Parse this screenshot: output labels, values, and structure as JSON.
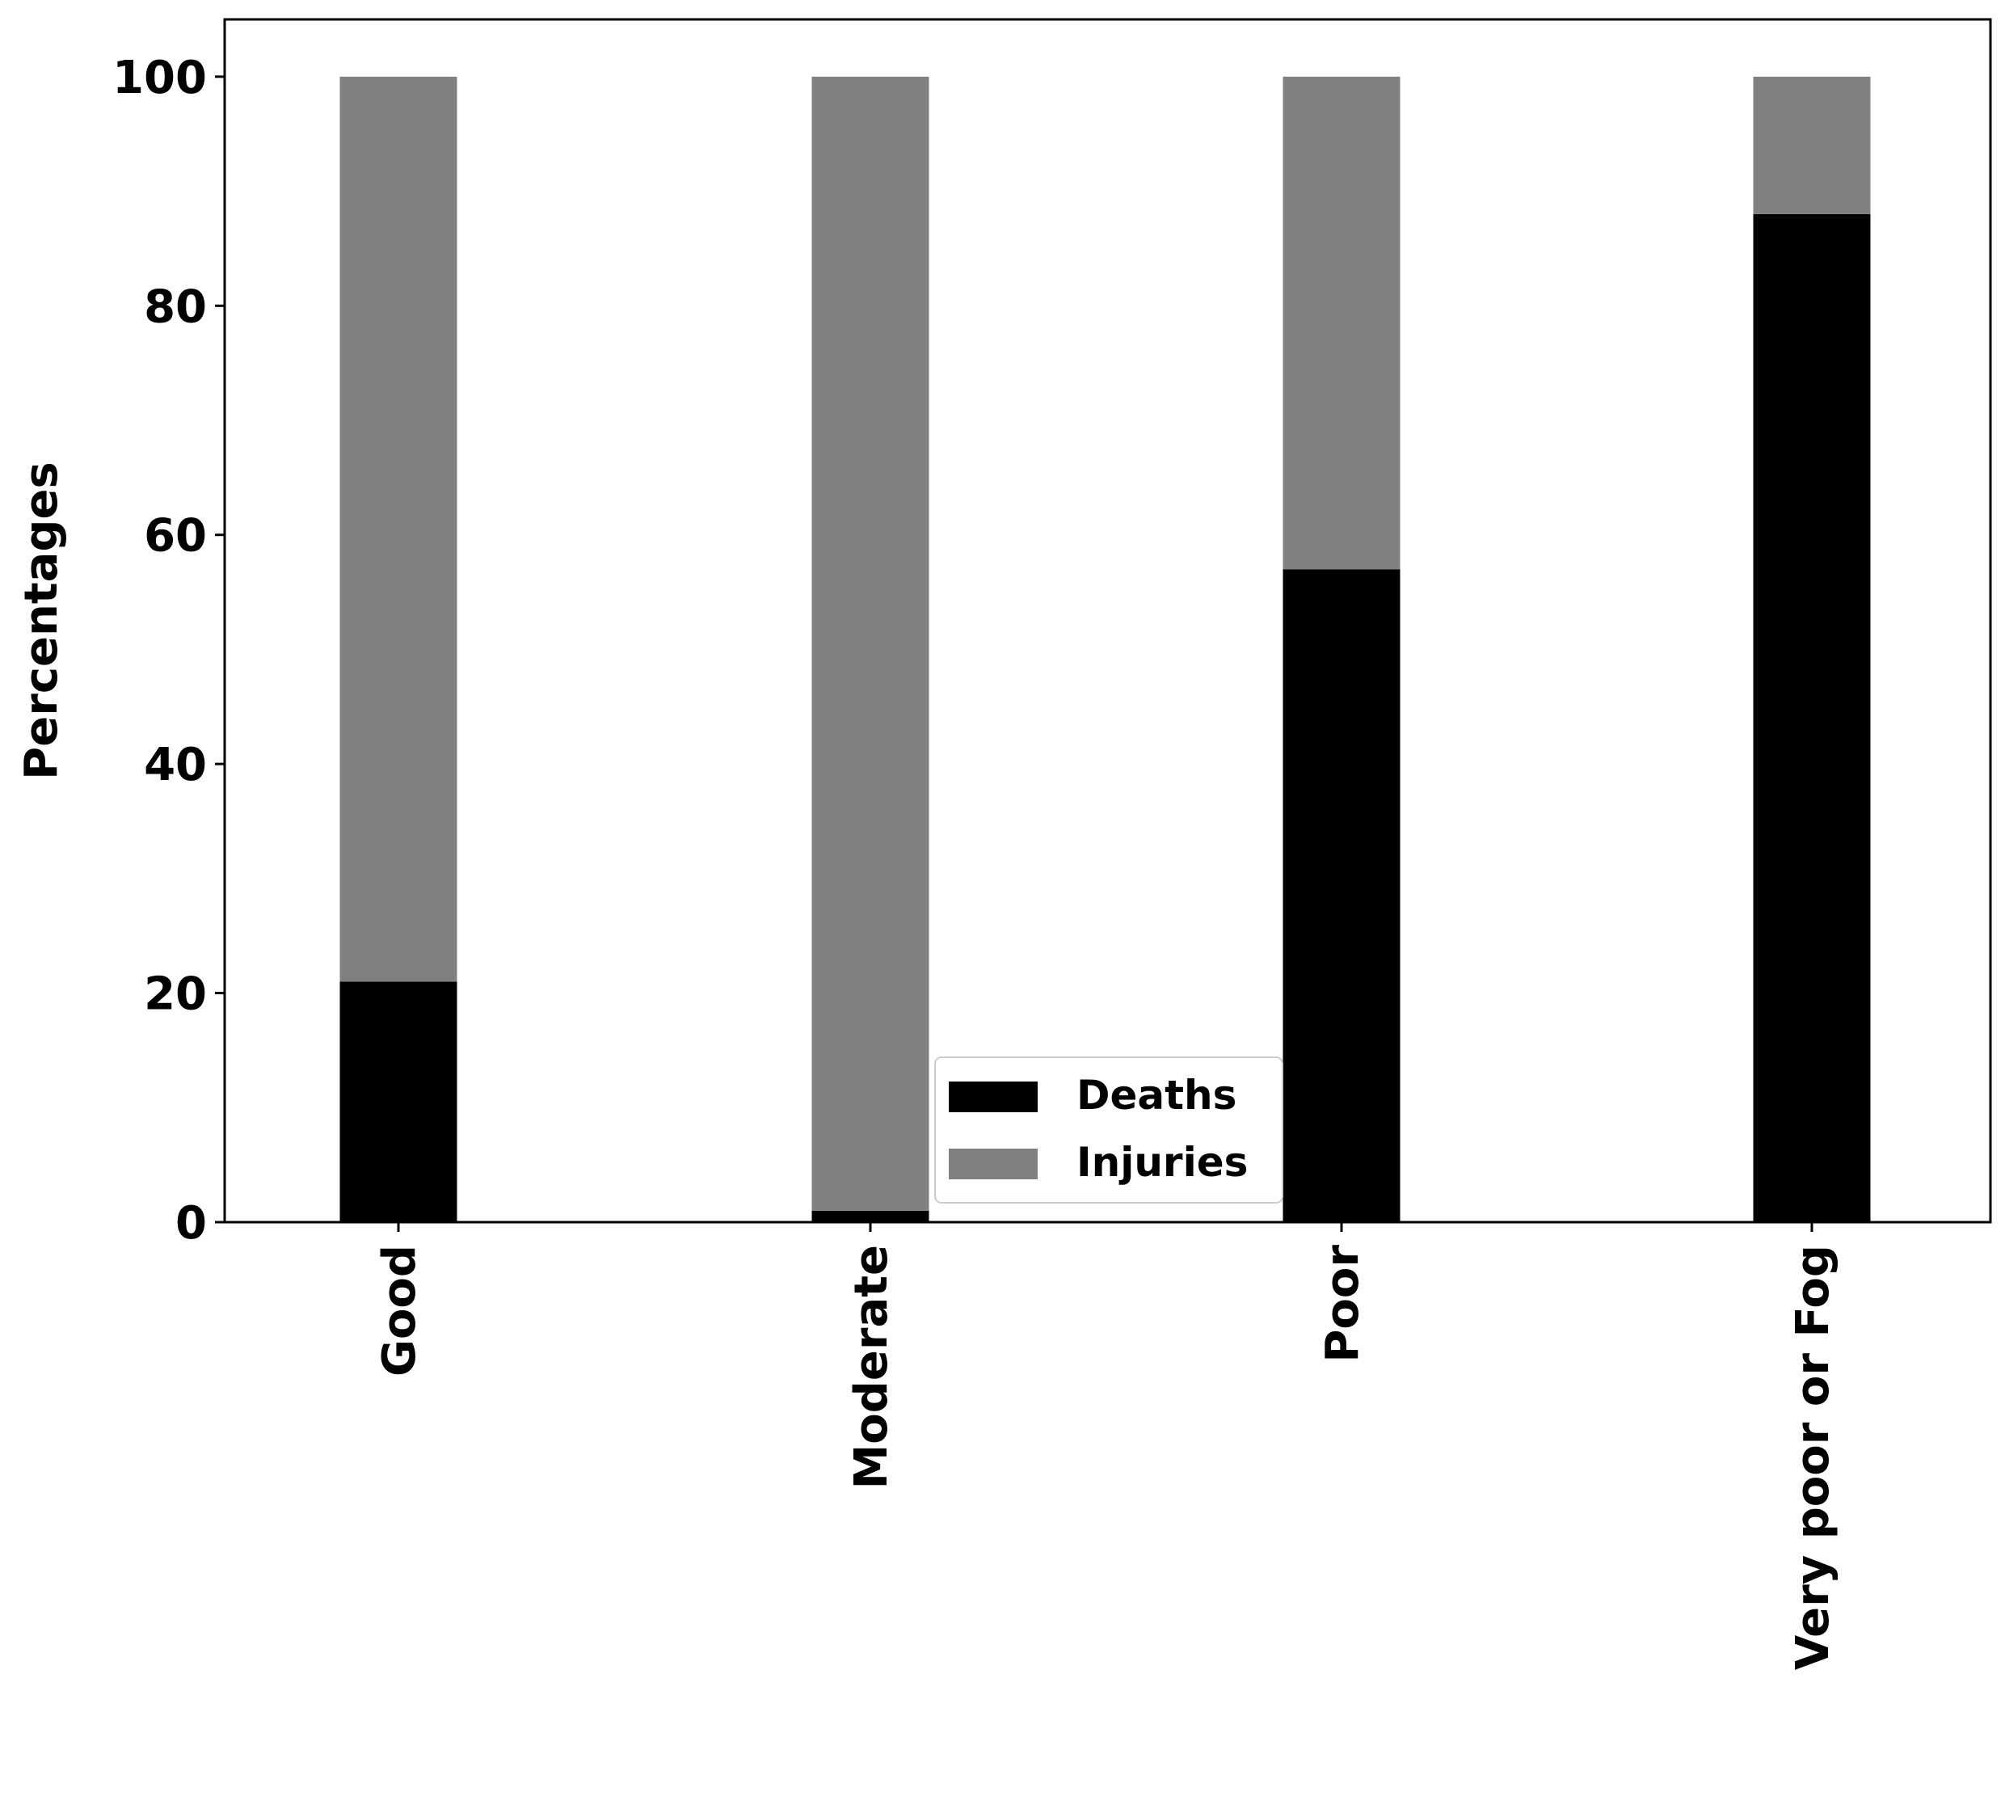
{
  "chart_data": {
    "type": "bar",
    "stacked": true,
    "categories": [
      "Good",
      "Moderate",
      "Poor",
      "Very poor or Fog"
    ],
    "series": [
      {
        "name": "Deaths",
        "color": "#000000",
        "values": [
          21,
          1,
          57,
          88
        ]
      },
      {
        "name": "Injuries",
        "color": "#808080",
        "values": [
          79,
          99,
          43,
          12
        ]
      }
    ],
    "title": "",
    "xlabel": "",
    "ylabel": "Percentages",
    "ylim": [
      0,
      105
    ],
    "yticks": [
      0,
      20,
      40,
      60,
      80,
      100
    ],
    "grid": false,
    "legend_position": "bottom-center"
  }
}
